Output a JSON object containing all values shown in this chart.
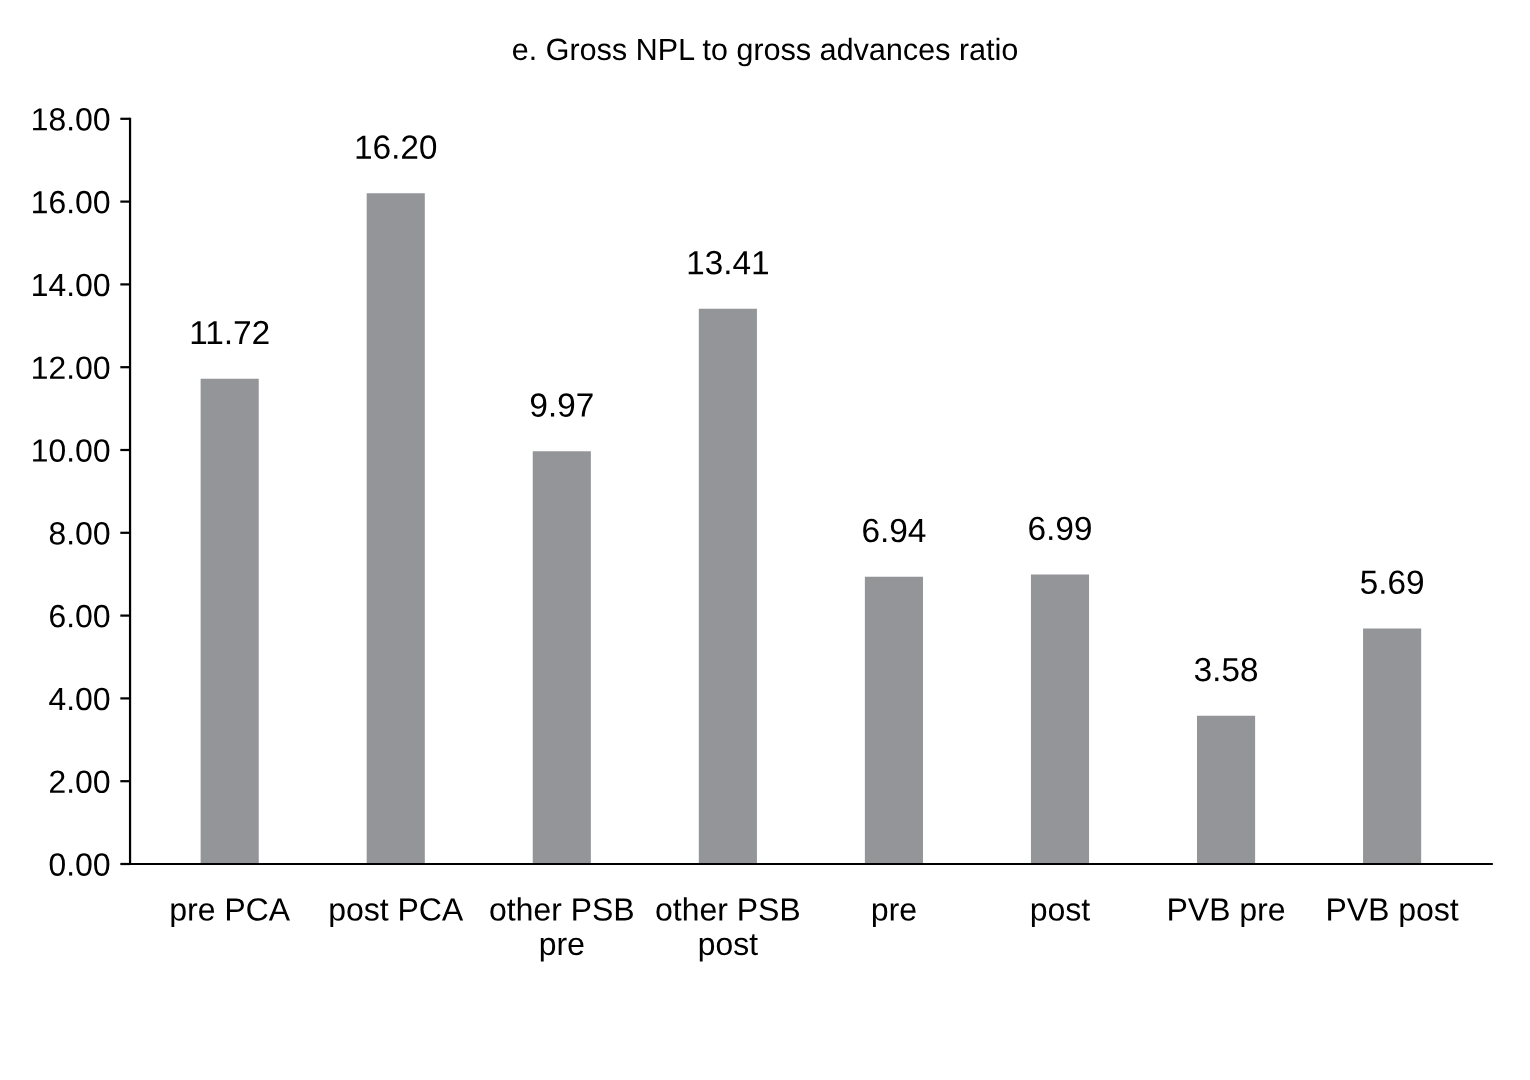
{
  "chart_data": {
    "type": "bar",
    "title": "e. Gross NPL to gross advances ratio",
    "categories": [
      "pre PCA",
      "post PCA",
      "other PSB\npre",
      "other PSB\npost",
      "pre",
      "post",
      "PVB pre",
      "PVB post"
    ],
    "values": [
      11.72,
      16.2,
      9.97,
      13.41,
      6.94,
      6.99,
      3.58,
      5.69
    ],
    "value_labels": [
      "11.72",
      "16.20",
      "9.97",
      "13.41",
      "6.94",
      "6.99",
      "3.58",
      "5.69"
    ],
    "color": "#939598",
    "ylim": [
      0,
      18
    ],
    "yticks": [
      {
        "value": 0,
        "label": "0.00"
      },
      {
        "value": 2,
        "label": "2.00"
      },
      {
        "value": 4,
        "label": "4.00"
      },
      {
        "value": 6,
        "label": "6.00"
      },
      {
        "value": 8,
        "label": "8.00"
      },
      {
        "value": 10,
        "label": "10.00"
      },
      {
        "value": 12,
        "label": "12.00"
      },
      {
        "value": 14,
        "label": "14.00"
      },
      {
        "value": 16,
        "label": "16.00"
      },
      {
        "value": 18,
        "label": "18.00"
      }
    ],
    "grid": false,
    "legend": false
  }
}
